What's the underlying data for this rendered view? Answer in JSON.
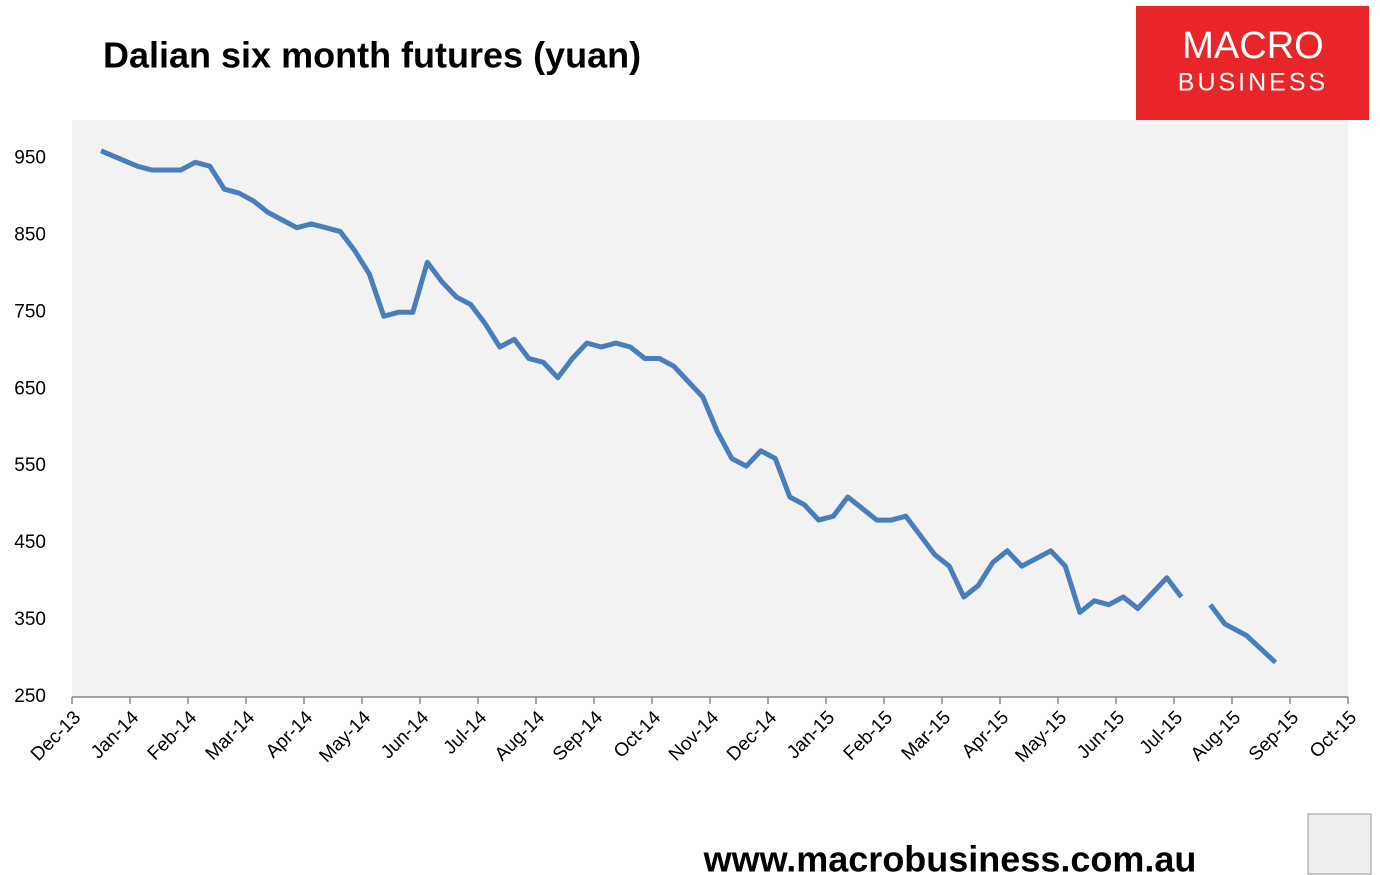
{
  "brand": {
    "line1": "MACRO",
    "line2": "BUSINESS"
  },
  "footer": "www.macrobusiness.com.au",
  "chart_data": {
    "type": "line",
    "title": "Dalian six month futures (yuan)",
    "xticks": [
      "Dec-13",
      "Jan-14",
      "Feb-14",
      "Mar-14",
      "Apr-14",
      "May-14",
      "Jun-14",
      "Jul-14",
      "Aug-14",
      "Sep-14",
      "Oct-14",
      "Nov-14",
      "Dec-14",
      "Jan-15",
      "Feb-15",
      "Mar-15",
      "Apr-15",
      "May-15",
      "Jun-15",
      "Jul-15",
      "Aug-15",
      "Sep-15",
      "Oct-15"
    ],
    "x": [
      "Dec-13",
      "Jan-14",
      "Jan-14",
      "Jan-14",
      "Jan-14",
      "Feb-14",
      "Feb-14",
      "Feb-14",
      "Feb-14",
      "Mar-14",
      "Mar-14",
      "Mar-14",
      "Mar-14",
      "Apr-14",
      "Apr-14",
      "Apr-14",
      "Apr-14",
      "May-14",
      "May-14",
      "May-14",
      "May-14",
      "Jun-14",
      "Jun-14",
      "Jun-14",
      "Jun-14",
      "Jul-14",
      "Jul-14",
      "Jul-14",
      "Jul-14",
      "Aug-14",
      "Aug-14",
      "Aug-14",
      "Aug-14",
      "Sep-14",
      "Sep-14",
      "Sep-14",
      "Sep-14",
      "Oct-14",
      "Oct-14",
      "Oct-14",
      "Oct-14",
      "Nov-14",
      "Nov-14",
      "Nov-14",
      "Nov-14",
      "Dec-14",
      "Dec-14",
      "Dec-14",
      "Dec-14",
      "Jan-15",
      "Jan-15",
      "Jan-15",
      "Jan-15",
      "Feb-15",
      "Feb-15",
      "Feb-15",
      "Feb-15",
      "Mar-15",
      "Mar-15",
      "Mar-15",
      "Mar-15",
      "Apr-15",
      "Apr-15",
      "Apr-15",
      "Apr-15",
      "May-15",
      "May-15",
      "May-15",
      "May-15",
      "Jun-15",
      "Jun-15",
      "Jun-15",
      "Jun-15",
      "Jul-15",
      "Jul-15",
      "Jul-15",
      "Jul-15",
      "Aug-15",
      "Aug-15"
    ],
    "series": [
      {
        "name": "Dalian six month futures",
        "color": "#4a7ebb",
        "values": [
          960,
          940,
          935,
          935,
          935,
          945,
          940,
          910,
          905,
          895,
          880,
          870,
          860,
          865,
          860,
          855,
          830,
          800,
          745,
          750,
          750,
          815,
          790,
          770,
          760,
          735,
          705,
          715,
          690,
          685,
          665,
          690,
          710,
          705,
          710,
          705,
          690,
          690,
          680,
          660,
          640,
          595,
          560,
          550,
          570,
          560,
          510,
          500,
          480,
          485,
          510,
          495,
          480,
          480,
          485,
          460,
          435,
          420,
          380,
          395,
          425,
          440,
          420,
          430,
          440,
          420,
          360,
          375,
          370,
          380,
          365,
          385,
          405,
          380,
          null,
          370,
          345,
          330,
          295
        ]
      }
    ],
    "ylim": [
      250,
      1000
    ],
    "yticks": [
      250,
      350,
      450,
      550,
      650,
      750,
      850,
      950
    ],
    "grid": false
  }
}
